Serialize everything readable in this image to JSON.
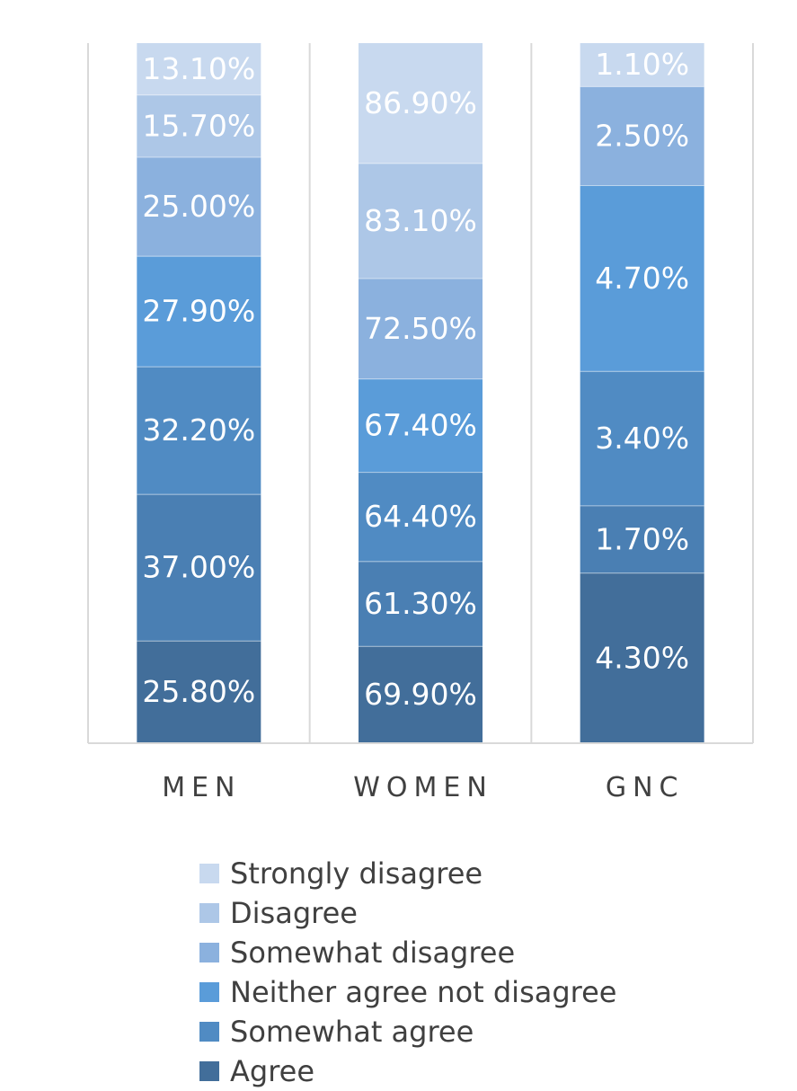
{
  "chart_data": {
    "type": "bar",
    "stacked": true,
    "categories": [
      "MEN",
      "WOMEN",
      "GNC"
    ],
    "series": [
      {
        "name": "Agree",
        "color": "#426e9a",
        "values": [
          25.8,
          69.9,
          4.3
        ],
        "labels": [
          "25.80%",
          "69.90%",
          "4.30%"
        ]
      },
      {
        "name": "Somewhat agree",
        "color": "#4a7fb3",
        "values": [
          37.0,
          61.3,
          1.7
        ],
        "labels": [
          "37.00%",
          "61.30%",
          "1.70%"
        ]
      },
      {
        "name": "Somewhat agree",
        "color": "#508bc3",
        "values": [
          32.2,
          64.4,
          3.4
        ],
        "labels": [
          "32.20%",
          "64.40%",
          "3.40%"
        ]
      },
      {
        "name": "Neither agree not disagree",
        "color": "#5a9cd9",
        "values": [
          27.9,
          67.4,
          4.7
        ],
        "labels": [
          "27.90%",
          "67.40%",
          "4.70%"
        ]
      },
      {
        "name": "Somewhat disagree",
        "color": "#8bb1de",
        "values": [
          25.0,
          72.5,
          2.5
        ],
        "labels": [
          "25.00%",
          "72.50%",
          "2.50%"
        ]
      },
      {
        "name": "Disagree",
        "color": "#adc7e7",
        "values": [
          15.7,
          83.1,
          null
        ],
        "labels": [
          "15.70%",
          "83.10%",
          ""
        ]
      },
      {
        "name": "Strongly disagree",
        "color": "#c8d9ef",
        "values": [
          13.1,
          86.9,
          1.1
        ],
        "labels": [
          "13.10%",
          "86.90%",
          "1.10%"
        ]
      }
    ],
    "legend": {
      "position": "bottom",
      "items": [
        {
          "label": "Strongly disagree",
          "color": "#c8d9ef"
        },
        {
          "label": "Disagree",
          "color": "#adc7e7"
        },
        {
          "label": "Somewhat disagree",
          "color": "#8bb1de"
        },
        {
          "label": "Neither agree not disagree",
          "color": "#5a9cd9"
        },
        {
          "label": "Somewhat agree",
          "color": "#508bc3"
        },
        {
          "label": "Agree",
          "color": "#426e9a"
        }
      ]
    },
    "title": "",
    "xlabel": "",
    "ylabel": "",
    "grid": false,
    "axis_color": "#d9d9d9"
  }
}
